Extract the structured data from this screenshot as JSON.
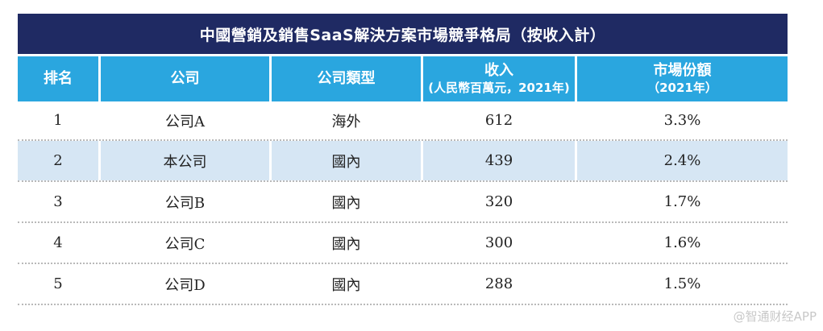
{
  "colors": {
    "title_bg": "#1f2a63",
    "header_bg": "#2aa6df",
    "shade_bg": "#d6e6f4"
  },
  "table": {
    "title": "中國營銷及銷售SaaS解決方案市場競爭格局（按收入計）",
    "columns": [
      {
        "label": "排名",
        "sub": ""
      },
      {
        "label": "公司",
        "sub": ""
      },
      {
        "label": "公司類型",
        "sub": ""
      },
      {
        "label": "收入",
        "sub": "(人民幣百萬元，2021年)"
      },
      {
        "label": "市場份額",
        "sub": "（2021年）"
      }
    ],
    "rows": [
      {
        "rank": "1",
        "company": "公司A",
        "type": "海外",
        "revenue": "612",
        "share": "3.3%",
        "highlight": false
      },
      {
        "rank": "2",
        "company": "本公司",
        "type": "國內",
        "revenue": "439",
        "share": "2.4%",
        "highlight": true
      },
      {
        "rank": "3",
        "company": "公司B",
        "type": "國內",
        "revenue": "320",
        "share": "1.7%",
        "highlight": false
      },
      {
        "rank": "4",
        "company": "公司C",
        "type": "國內",
        "revenue": "300",
        "share": "1.6%",
        "highlight": false
      },
      {
        "rank": "5",
        "company": "公司D",
        "type": "國內",
        "revenue": "288",
        "share": "1.5%",
        "highlight": false
      }
    ]
  },
  "watermark": "@智通财经APP"
}
